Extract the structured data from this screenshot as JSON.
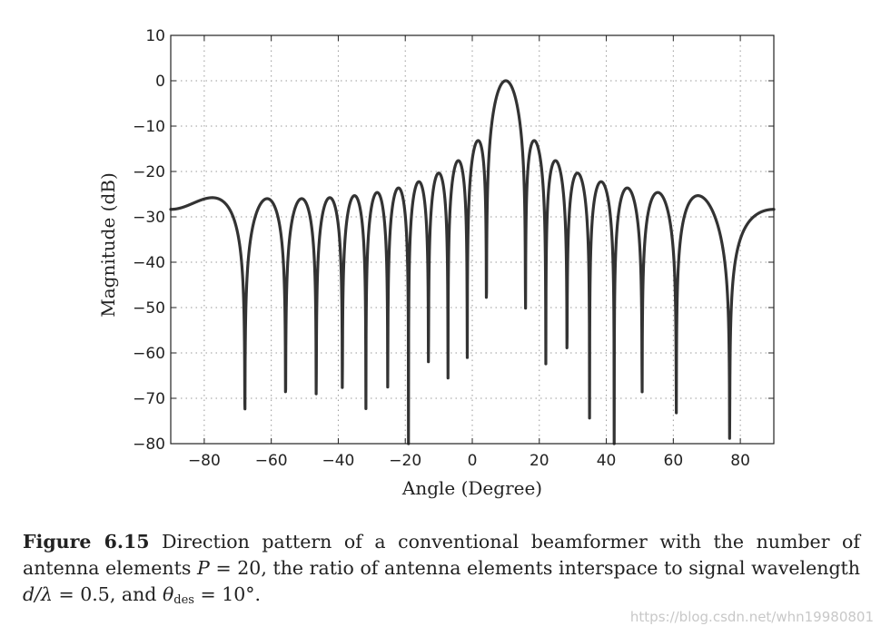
{
  "chart_data": {
    "type": "line",
    "title": "",
    "xlabel": "Angle (Degree)",
    "ylabel": "Magnitude (dB)",
    "xlim": [
      -90,
      90
    ],
    "ylim": [
      -80,
      10
    ],
    "x_ticks": [
      -80,
      -60,
      -40,
      -20,
      0,
      20,
      40,
      60,
      80
    ],
    "x_tick_labels": [
      "−80",
      "−60",
      "−40",
      "−20",
      "0",
      "20",
      "40",
      "60",
      "80"
    ],
    "y_ticks": [
      10,
      0,
      -10,
      -20,
      -30,
      -40,
      -50,
      -60,
      -70,
      -80
    ],
    "y_tick_labels": [
      "10",
      "0",
      "−10",
      "−20",
      "−30",
      "−40",
      "−50",
      "−60",
      "−70",
      "−80"
    ],
    "grid": "dotted",
    "series": [
      {
        "name": "Direction pattern (P=20, d/λ=0.5, θdes=10°)",
        "elements": 20,
        "spacing_over_wavelength": 0.5,
        "steer_angle_deg": 10,
        "floor_db": -80,
        "peak_db": 0
      }
    ]
  },
  "caption": {
    "figure_label": "Figure 6.15",
    "part1": " Direction pattern of a conventional beamformer with the number of antenna elements ",
    "var_P": "P",
    "eq_P": " = 20, the ratio of antenna elements interspace to signal wavelength ",
    "var_d": "d",
    "slash_lambda": "/λ",
    "eq_ratio": " = 0.5, and ",
    "var_theta": "θ",
    "sub_des": "des",
    "eq_theta": " = 10°."
  },
  "watermark": "https://blog.csdn.net/whn19980801",
  "colors": {
    "curve": "#333333",
    "axis": "#222222",
    "grid": "#999999"
  }
}
